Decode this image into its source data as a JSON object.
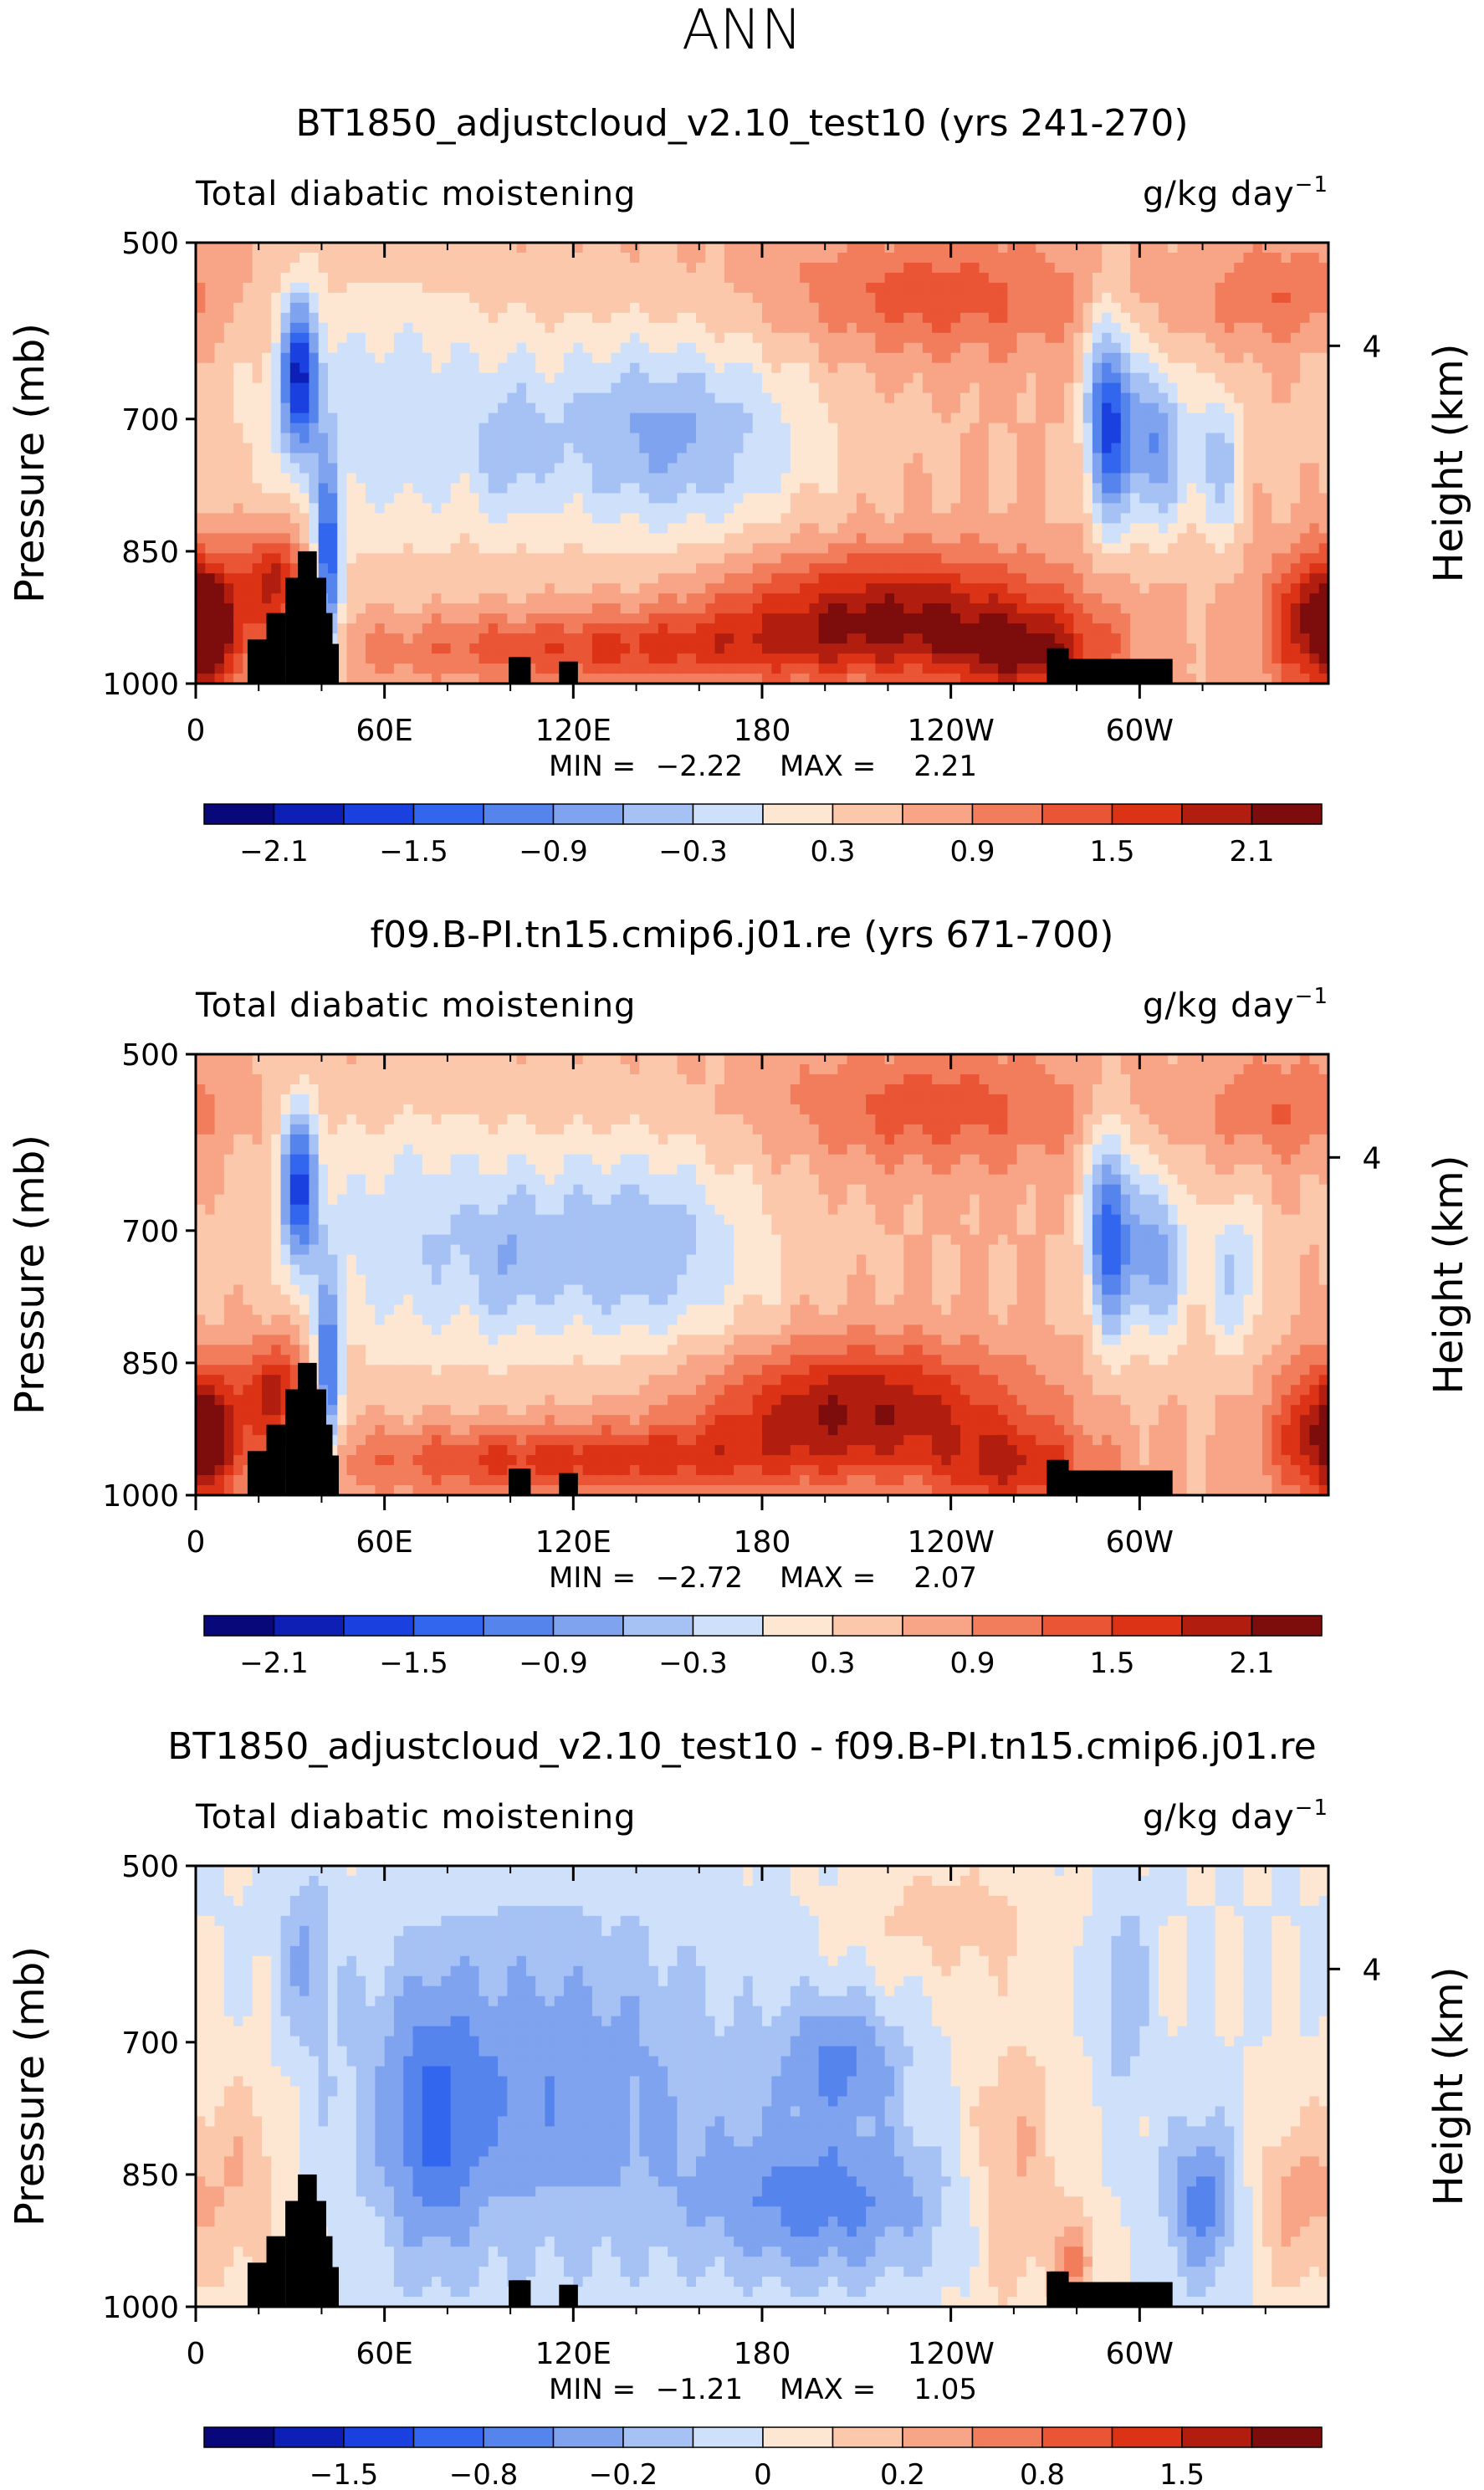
{
  "figure_title": "ANN",
  "chart_data": [
    {
      "type": "heatmap",
      "title": "BT1850_adjustcloud_v2.10_test10 (yrs 241-270)",
      "variable_label": "Total diabatic moistening",
      "units": "g/kg day",
      "units_exponent": "−1",
      "ylabel": "Pressure (mb)",
      "ylabel_right": "Height (km)",
      "yticks": [
        500,
        700,
        850,
        1000
      ],
      "yticks_right": [
        {
          "label": "4",
          "pressure": 617
        }
      ],
      "xticks": [
        {
          "label": "0",
          "lon": 0
        },
        {
          "label": "60E",
          "lon": 60
        },
        {
          "label": "120E",
          "lon": 120
        },
        {
          "label": "180",
          "lon": 180
        },
        {
          "label": "120W",
          "lon": 240
        },
        {
          "label": "60W",
          "lon": 300
        }
      ],
      "xlim": [
        0,
        360
      ],
      "ylim": [
        500,
        1000
      ],
      "stats": {
        "min_label": "MIN =",
        "min": "−2.22",
        "max_label": "MAX =",
        "max": "2.21"
      },
      "colorbar": {
        "colors": [
          "#08087a",
          "#0d1fb5",
          "#1a40e0",
          "#3366ee",
          "#5584ec",
          "#7fa3ef",
          "#a6c1f4",
          "#cfe0fb",
          "#fde6d2",
          "#fcc8ab",
          "#f8a587",
          "#f27d5c",
          "#ea5535",
          "#dc3215",
          "#b11e0f",
          "#7d0c0c"
        ],
        "labels": [
          {
            "text": "−2.1",
            "boundary": 1
          },
          {
            "text": "−1.5",
            "boundary": 3
          },
          {
            "text": "−0.9",
            "boundary": 5
          },
          {
            "text": "−0.3",
            "boundary": 7
          },
          {
            "text": "0.3",
            "boundary": 9
          },
          {
            "text": "0.9",
            "boundary": 11
          },
          {
            "text": "1.5",
            "boundary": 13
          },
          {
            "text": "2.1",
            "boundary": 15
          }
        ]
      },
      "field": {
        "base": 2.0,
        "features": [
          {
            "lon": 60,
            "p": 700,
            "v": -2.8,
            "slon": 45,
            "sp": 150
          },
          {
            "lon": 150,
            "p": 720,
            "v": -4.2,
            "slon": 45,
            "sp": 120
          },
          {
            "lon": 33,
            "p": 650,
            "v": -6.5,
            "slon": 6,
            "sp": 90
          },
          {
            "lon": 42,
            "p": 870,
            "v": -6.5,
            "slon": 4,
            "sp": 110
          },
          {
            "lon": 290,
            "p": 700,
            "v": -7.0,
            "slon": 7,
            "sp": 120
          },
          {
            "lon": 305,
            "p": 730,
            "v": -5.0,
            "slon": 10,
            "sp": 100
          },
          {
            "lon": 325,
            "p": 750,
            "v": -3.5,
            "slon": 8,
            "sp": 90
          },
          {
            "lon": 100,
            "p": 740,
            "v": -1.5,
            "slon": 10,
            "sp": 80
          },
          {
            "lon": 220,
            "p": 920,
            "v": 5.0,
            "slon": 55,
            "sp": 70
          },
          {
            "lon": 265,
            "p": 970,
            "v": 4.0,
            "slon": 25,
            "sp": 50
          },
          {
            "lon": 5,
            "p": 930,
            "v": 5.0,
            "slon": 10,
            "sp": 70
          },
          {
            "lon": 25,
            "p": 880,
            "v": 4.5,
            "slon": 10,
            "sp": 60
          },
          {
            "lon": 355,
            "p": 930,
            "v": 4.5,
            "slon": 15,
            "sp": 80
          },
          {
            "lon": 130,
            "p": 960,
            "v": 3.0,
            "slon": 80,
            "sp": 40
          },
          {
            "lon": 235,
            "p": 560,
            "v": 2.5,
            "slon": 50,
            "sp": 70
          },
          {
            "lon": 345,
            "p": 560,
            "v": 2.0,
            "slon": 25,
            "sp": 60
          }
        ]
      }
    },
    {
      "type": "heatmap",
      "title": "f09.B-PI.tn15.cmip6.j01.re (yrs 671-700)",
      "variable_label": "Total diabatic moistening",
      "units": "g/kg day",
      "units_exponent": "−1",
      "ylabel": "Pressure (mb)",
      "ylabel_right": "Height (km)",
      "yticks": [
        500,
        700,
        850,
        1000
      ],
      "yticks_right": [
        {
          "label": "4",
          "pressure": 617
        }
      ],
      "xticks": [
        {
          "label": "0",
          "lon": 0
        },
        {
          "label": "60E",
          "lon": 60
        },
        {
          "label": "120E",
          "lon": 120
        },
        {
          "label": "180",
          "lon": 180
        },
        {
          "label": "120W",
          "lon": 240
        },
        {
          "label": "60W",
          "lon": 300
        }
      ],
      "xlim": [
        0,
        360
      ],
      "ylim": [
        500,
        1000
      ],
      "stats": {
        "min_label": "MIN =",
        "min": "−2.72",
        "max_label": "MAX =",
        "max": "2.07"
      },
      "colorbar": {
        "colors": [
          "#08087a",
          "#0d1fb5",
          "#1a40e0",
          "#3366ee",
          "#5584ec",
          "#7fa3ef",
          "#a6c1f4",
          "#cfe0fb",
          "#fde6d2",
          "#fcc8ab",
          "#f8a587",
          "#f27d5c",
          "#ea5535",
          "#dc3215",
          "#b11e0f",
          "#7d0c0c"
        ],
        "labels": [
          {
            "text": "−2.1",
            "boundary": 1
          },
          {
            "text": "−1.5",
            "boundary": 3
          },
          {
            "text": "−0.9",
            "boundary": 5
          },
          {
            "text": "−0.3",
            "boundary": 7
          },
          {
            "text": "0.3",
            "boundary": 9
          },
          {
            "text": "0.9",
            "boundary": 11
          },
          {
            "text": "1.5",
            "boundary": 13
          },
          {
            "text": "2.1",
            "boundary": 15
          }
        ]
      },
      "field": {
        "base": 2.0,
        "features": [
          {
            "lon": 70,
            "p": 710,
            "v": -2.8,
            "slon": 40,
            "sp": 140
          },
          {
            "lon": 140,
            "p": 720,
            "v": -3.8,
            "slon": 40,
            "sp": 120
          },
          {
            "lon": 33,
            "p": 650,
            "v": -6.5,
            "slon": 6,
            "sp": 90
          },
          {
            "lon": 42,
            "p": 870,
            "v": -6.0,
            "slon": 4,
            "sp": 110
          },
          {
            "lon": 290,
            "p": 700,
            "v": -6.5,
            "slon": 7,
            "sp": 120
          },
          {
            "lon": 305,
            "p": 730,
            "v": -4.5,
            "slon": 10,
            "sp": 100
          },
          {
            "lon": 330,
            "p": 750,
            "v": -3.0,
            "slon": 10,
            "sp": 90
          },
          {
            "lon": 100,
            "p": 740,
            "v": -1.2,
            "slon": 10,
            "sp": 80
          },
          {
            "lon": 210,
            "p": 900,
            "v": 5.0,
            "slon": 50,
            "sp": 70
          },
          {
            "lon": 260,
            "p": 970,
            "v": 3.5,
            "slon": 25,
            "sp": 50
          },
          {
            "lon": 5,
            "p": 930,
            "v": 4.5,
            "slon": 10,
            "sp": 70
          },
          {
            "lon": 25,
            "p": 880,
            "v": 4.5,
            "slon": 10,
            "sp": 60
          },
          {
            "lon": 355,
            "p": 930,
            "v": 3.5,
            "slon": 15,
            "sp": 80
          },
          {
            "lon": 120,
            "p": 960,
            "v": 3.5,
            "slon": 80,
            "sp": 40
          },
          {
            "lon": 235,
            "p": 560,
            "v": 2.5,
            "slon": 50,
            "sp": 70
          },
          {
            "lon": 345,
            "p": 560,
            "v": 2.0,
            "slon": 25,
            "sp": 60
          }
        ]
      }
    },
    {
      "type": "heatmap",
      "title": "BT1850_adjustcloud_v2.10_test10 - f09.B-PI.tn15.cmip6.j01.re",
      "variable_label": "Total diabatic moistening",
      "units": "g/kg day",
      "units_exponent": "−1",
      "ylabel": "Pressure (mb)",
      "ylabel_right": "Height (km)",
      "yticks": [
        500,
        700,
        850,
        1000
      ],
      "yticks_right": [
        {
          "label": "4",
          "pressure": 617
        }
      ],
      "xticks": [
        {
          "label": "0",
          "lon": 0
        },
        {
          "label": "60E",
          "lon": 60
        },
        {
          "label": "120E",
          "lon": 120
        },
        {
          "label": "180",
          "lon": 180
        },
        {
          "label": "120W",
          "lon": 240
        },
        {
          "label": "60W",
          "lon": 300
        }
      ],
      "xlim": [
        0,
        360
      ],
      "ylim": [
        500,
        1000
      ],
      "stats": {
        "min_label": "MIN =",
        "min": "−1.21",
        "max_label": "MAX =",
        "max": "1.05"
      },
      "colorbar": {
        "colors": [
          "#08087a",
          "#0d1fb5",
          "#1a40e0",
          "#3366ee",
          "#5584ec",
          "#7fa3ef",
          "#a6c1f4",
          "#cfe0fb",
          "#fde6d2",
          "#fcc8ab",
          "#f8a587",
          "#f27d5c",
          "#ea5535",
          "#dc3215",
          "#b11e0f",
          "#7d0c0c"
        ],
        "labels": [
          {
            "text": "−1.5",
            "boundary": 2
          },
          {
            "text": "−0.8",
            "boundary": 4
          },
          {
            "text": "−0.2",
            "boundary": 6
          },
          {
            "text": "0",
            "boundary": 8
          },
          {
            "text": "0.2",
            "boundary": 10
          },
          {
            "text": "0.8",
            "boundary": 12
          },
          {
            "text": "1.5",
            "boundary": 14
          }
        ]
      },
      "field": {
        "base": 0.0,
        "features": [
          {
            "lon": 110,
            "p": 750,
            "v": -2.8,
            "slon": 60,
            "sp": 200
          },
          {
            "lon": 200,
            "p": 880,
            "v": -3.3,
            "slon": 40,
            "sp": 90
          },
          {
            "lon": 205,
            "p": 720,
            "v": -3.0,
            "slon": 20,
            "sp": 70
          },
          {
            "lon": 320,
            "p": 880,
            "v": -3.5,
            "slon": 12,
            "sp": 90
          },
          {
            "lon": 75,
            "p": 800,
            "v": -2.5,
            "slon": 15,
            "sp": 150
          },
          {
            "lon": 15,
            "p": 850,
            "v": 2.0,
            "slon": 15,
            "sp": 130
          },
          {
            "lon": 260,
            "p": 850,
            "v": 2.3,
            "slon": 15,
            "sp": 160
          },
          {
            "lon": 280,
            "p": 950,
            "v": 3.2,
            "slon": 6,
            "sp": 60
          },
          {
            "lon": 350,
            "p": 880,
            "v": 2.3,
            "slon": 15,
            "sp": 100
          },
          {
            "lon": 240,
            "p": 560,
            "v": 1.5,
            "slon": 30,
            "sp": 70
          },
          {
            "lon": 35,
            "p": 600,
            "v": -1.8,
            "slon": 8,
            "sp": 100
          },
          {
            "lon": 295,
            "p": 640,
            "v": -1.8,
            "slon": 8,
            "sp": 120
          }
        ]
      }
    }
  ]
}
